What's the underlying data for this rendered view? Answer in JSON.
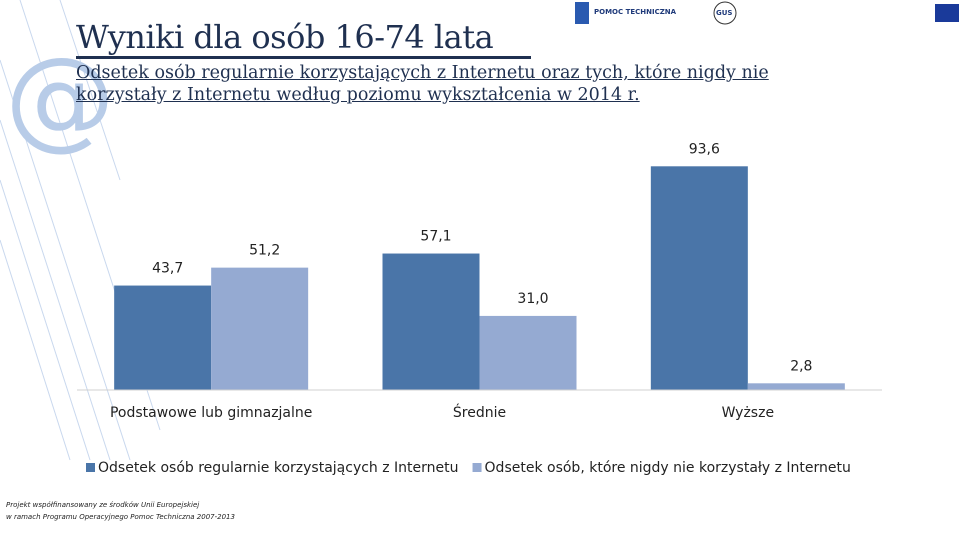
{
  "chart_data": {
    "type": "bar",
    "title": "Wyniki dla osób 16-74 lata",
    "subtitle": "Odsetek osób regularnie korzystających z Internetu oraz tych, które nigdy nie korzystały z Internetu według poziomu wykształcenia  w 2014 r.",
    "categories": [
      "Podstawowe lub gimnazjalne",
      "Średnie",
      "Wyższe"
    ],
    "series": [
      {
        "name": "Odsetek osób regularnie korzystających z Internetu",
        "color": "#4a75a8",
        "values": [
          43.7,
          57.1,
          93.6
        ],
        "value_labels": [
          "43,7",
          "57,1",
          "93,6"
        ]
      },
      {
        "name": "Odsetek osób, które nigdy nie korzystały z Internetu",
        "color": "#95aad2",
        "values": [
          51.2,
          31.0,
          2.8
        ],
        "value_labels": [
          "51,2",
          "31,0",
          "2,8"
        ]
      }
    ],
    "ylim": [
      0,
      100
    ],
    "legend": "bottom"
  },
  "footer": [
    "Projekt współfinansowany ze środków Unii Europejskiej",
    "w ramach Programu Operacyjnego Pomoc Techniczna 2007-2013"
  ],
  "logos": [
    "POMOC TECHNICZNA",
    "GUS"
  ]
}
